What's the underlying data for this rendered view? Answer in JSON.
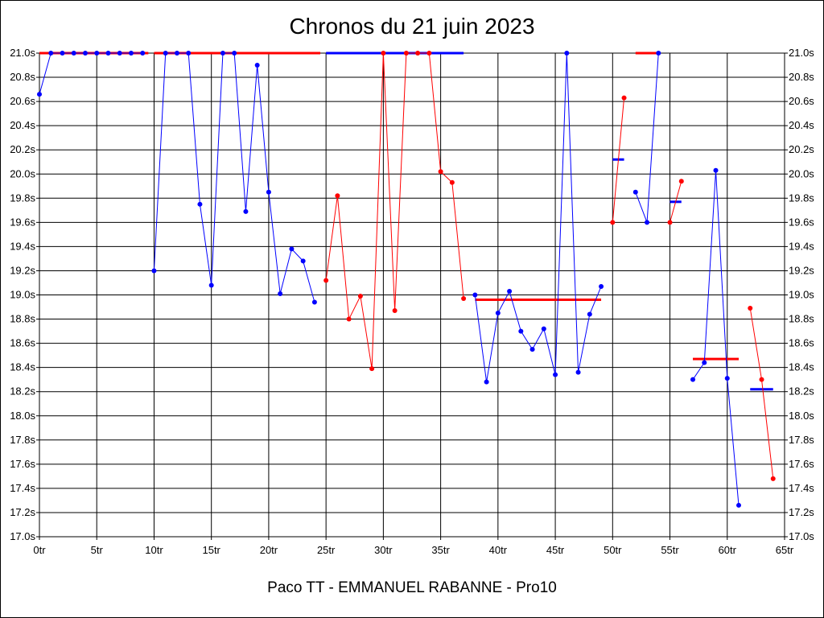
{
  "chart_data": {
    "type": "line",
    "title": "Chronos du 21 juin 2023",
    "xlabel": "Paco TT - EMMANUEL RABANNE - Pro10",
    "ylabel": "",
    "xlim": [
      0,
      65
    ],
    "ylim": [
      17.0,
      21.0
    ],
    "grid": true,
    "x_ticks": [
      "0tr",
      "5tr",
      "10tr",
      "15tr",
      "20tr",
      "25tr",
      "30tr",
      "35tr",
      "40tr",
      "45tr",
      "50tr",
      "55tr",
      "60tr",
      "65tr"
    ],
    "y_ticks": [
      "17.0s",
      "17.2s",
      "17.4s",
      "17.6s",
      "17.8s",
      "18.0s",
      "18.2s",
      "18.4s",
      "18.6s",
      "18.8s",
      "19.0s",
      "19.2s",
      "19.4s",
      "19.6s",
      "19.8s",
      "20.0s",
      "20.2s",
      "20.4s",
      "20.6s",
      "20.8s",
      "21.0s"
    ],
    "colors": {
      "blue": "#0000ff",
      "red": "#ff0000",
      "grid": "#000000"
    },
    "series": [
      {
        "color": "blue",
        "points": [
          [
            0,
            20.66
          ],
          [
            1,
            21.0
          ],
          [
            2,
            21.0
          ],
          [
            3,
            21.0
          ],
          [
            4,
            21.0
          ],
          [
            5,
            21.0
          ],
          [
            6,
            21.0
          ],
          [
            7,
            21.0
          ],
          [
            8,
            21.0
          ],
          [
            9,
            21.0
          ]
        ]
      },
      {
        "color": "blue",
        "points": [
          [
            10,
            19.2
          ],
          [
            11,
            21.0
          ],
          [
            12,
            21.0
          ],
          [
            13,
            21.0
          ],
          [
            14,
            19.75
          ],
          [
            15,
            19.08
          ],
          [
            16,
            21.0
          ],
          [
            17,
            21.0
          ],
          [
            18,
            19.69
          ],
          [
            19,
            20.9
          ],
          [
            20,
            19.85
          ],
          [
            21,
            19.01
          ],
          [
            22,
            19.38
          ],
          [
            23,
            19.28
          ],
          [
            24,
            18.94
          ]
        ]
      },
      {
        "color": "red",
        "points": [
          [
            25,
            19.12
          ],
          [
            26,
            19.82
          ],
          [
            27,
            18.8
          ],
          [
            28,
            18.99
          ],
          [
            29,
            18.39
          ],
          [
            30,
            21.0
          ],
          [
            31,
            18.87
          ],
          [
            32,
            21.0
          ],
          [
            33,
            21.0
          ],
          [
            34,
            21.0
          ],
          [
            35,
            20.02
          ],
          [
            36,
            19.93
          ],
          [
            37,
            18.97
          ]
        ]
      },
      {
        "color": "blue",
        "points": [
          [
            38,
            19.0
          ],
          [
            39,
            18.28
          ],
          [
            40,
            18.85
          ],
          [
            41,
            19.03
          ],
          [
            42,
            18.7
          ],
          [
            43,
            18.55
          ],
          [
            44,
            18.72
          ],
          [
            45,
            18.34
          ],
          [
            46,
            21.0
          ],
          [
            47,
            18.36
          ],
          [
            48,
            18.84
          ],
          [
            49,
            19.07
          ]
        ]
      },
      {
        "color": "red",
        "points": [
          [
            50,
            19.6
          ],
          [
            51,
            20.63
          ]
        ]
      },
      {
        "color": "blue",
        "points": [
          [
            52,
            19.85
          ],
          [
            53,
            19.6
          ],
          [
            54,
            21.0
          ]
        ]
      },
      {
        "color": "red",
        "points": [
          [
            55,
            19.6
          ],
          [
            56,
            19.94
          ]
        ]
      },
      {
        "color": "blue",
        "points": [
          [
            57,
            18.3
          ],
          [
            58,
            18.44
          ],
          [
            59,
            20.03
          ],
          [
            60,
            18.31
          ],
          [
            61,
            17.26
          ]
        ]
      },
      {
        "color": "red",
        "points": [
          [
            62,
            18.89
          ],
          [
            63,
            18.3
          ],
          [
            64,
            17.48
          ]
        ]
      }
    ],
    "average_lines": [
      {
        "color": "red",
        "x": [
          0,
          9.5
        ],
        "y": 21.0
      },
      {
        "color": "red",
        "x": [
          10,
          24.5
        ],
        "y": 21.0
      },
      {
        "color": "blue",
        "x": [
          25,
          37
        ],
        "y": 21.0
      },
      {
        "color": "red",
        "x": [
          38,
          49
        ],
        "y": 18.96
      },
      {
        "color": "blue",
        "x": [
          50,
          51
        ],
        "y": 20.12
      },
      {
        "color": "red",
        "x": [
          52,
          54
        ],
        "y": 21.0
      },
      {
        "color": "blue",
        "x": [
          55,
          56
        ],
        "y": 19.77
      },
      {
        "color": "red",
        "x": [
          57,
          61
        ],
        "y": 18.47
      },
      {
        "color": "blue",
        "x": [
          62,
          64
        ],
        "y": 18.22
      }
    ]
  }
}
